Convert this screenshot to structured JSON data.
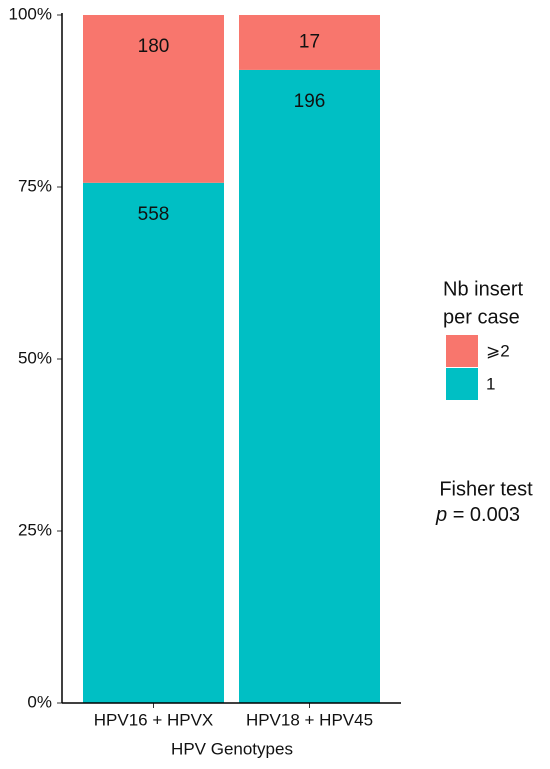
{
  "chart_data": {
    "type": "bar",
    "stacked": "percent",
    "x_label": "HPV Genotypes",
    "categories": [
      "HPV16 + HPVX",
      "HPV18 + HPV45"
    ],
    "series": [
      {
        "name": "1",
        "color": "#00BFC4",
        "values": [
          558,
          196
        ]
      },
      {
        "name": "⩾2",
        "color": "#F8766D",
        "values": [
          180,
          17
        ]
      }
    ],
    "ylim": [
      0,
      100
    ],
    "yticks": [
      {
        "value": 0,
        "label": "0%"
      },
      {
        "value": 25,
        "label": "25%"
      },
      {
        "value": 50,
        "label": "50%"
      },
      {
        "value": 75,
        "label": "75%"
      },
      {
        "value": 100,
        "label": "100%"
      }
    ],
    "grid": false,
    "legend_title": [
      "Nb insert",
      "per case"
    ],
    "legend_position": "right",
    "annotation": {
      "text": "Fisher test",
      "stat": "p",
      "value": "= 0.003"
    }
  }
}
